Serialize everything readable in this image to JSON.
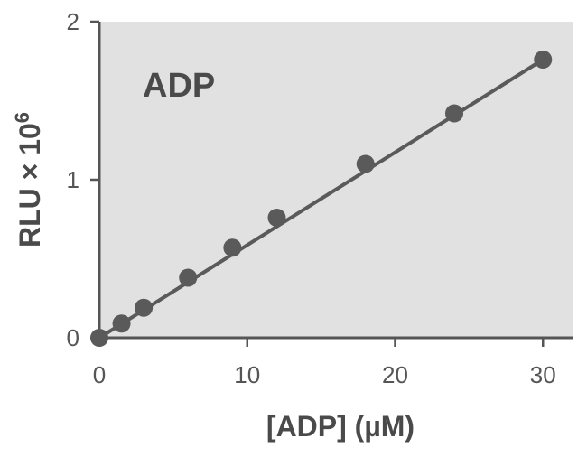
{
  "chart_data": {
    "type": "scatter",
    "title": "",
    "annotation": "ADP",
    "xlabel": "[ADP] (µM)",
    "ylabel_main": "RLU × 10",
    "ylabel_exponent": "6",
    "xlim": [
      0,
      32
    ],
    "ylim": [
      0,
      2
    ],
    "xticks": [
      0,
      10,
      20,
      30
    ],
    "yticks": [
      0,
      1,
      2
    ],
    "grid": false,
    "legend": "none",
    "colors": {
      "plot_background": "#e1e1e1",
      "marker": "#5a5a5a",
      "line": "#5a5a5a",
      "axis": "#555555",
      "text": "#4a4a4a"
    },
    "series": [
      {
        "points": [
          {
            "x": 0,
            "y": 0
          },
          {
            "x": 1.5,
            "y": 0.09
          },
          {
            "x": 3,
            "y": 0.19
          },
          {
            "x": 6,
            "y": 0.38
          },
          {
            "x": 9,
            "y": 0.57
          },
          {
            "x": 12,
            "y": 0.76
          },
          {
            "x": 18,
            "y": 1.1
          },
          {
            "x": 24,
            "y": 1.42
          },
          {
            "x": 30,
            "y": 1.76
          }
        ],
        "fit": {
          "x": [
            0,
            30
          ],
          "y": [
            0,
            1.76
          ]
        }
      }
    ]
  }
}
